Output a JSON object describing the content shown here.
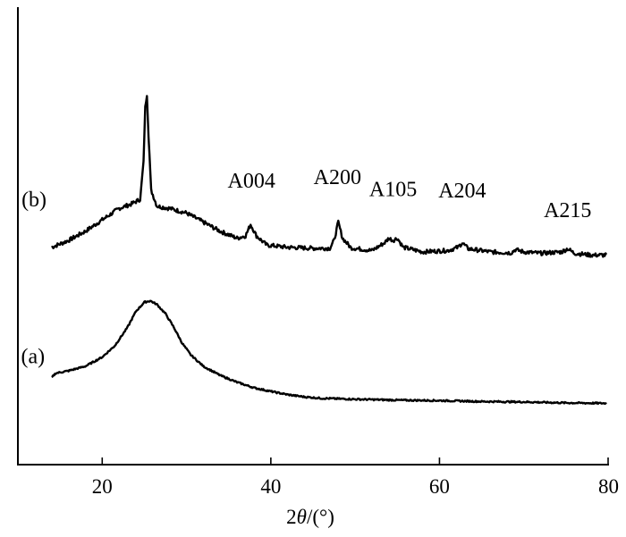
{
  "chart_data": {
    "type": "line",
    "title": "",
    "xlabel_prefix": "2",
    "xlabel_symbol": "θ",
    "xlabel_suffix": "/(°)",
    "ylabel": "",
    "xlim": [
      10,
      80
    ],
    "ylim": [
      0,
      100
    ],
    "xticks": [
      20,
      40,
      60,
      80
    ],
    "grid": false,
    "legend": "none",
    "series": [
      {
        "name": "(b)",
        "color": "#000000",
        "points": [
          [
            14,
            47.5
          ],
          [
            16,
            49
          ],
          [
            18,
            51
          ],
          [
            20,
            53.5
          ],
          [
            22,
            56
          ],
          [
            23.5,
            57
          ],
          [
            24.5,
            58
          ],
          [
            24.9,
            66
          ],
          [
            25.1,
            78
          ],
          [
            25.3,
            81
          ],
          [
            25.5,
            72
          ],
          [
            25.8,
            60
          ],
          [
            26.5,
            56.5
          ],
          [
            28,
            56
          ],
          [
            30,
            55
          ],
          [
            32,
            53
          ],
          [
            34,
            51
          ],
          [
            36,
            49.5
          ],
          [
            37,
            50
          ],
          [
            37.6,
            52.5
          ],
          [
            38.3,
            50
          ],
          [
            39.5,
            48
          ],
          [
            42,
            47.5
          ],
          [
            45,
            47.3
          ],
          [
            47,
            47.3
          ],
          [
            47.5,
            49
          ],
          [
            48,
            53
          ],
          [
            48.5,
            49.5
          ],
          [
            49.5,
            47.4
          ],
          [
            52,
            46.8
          ],
          [
            53.5,
            48.5
          ],
          [
            54,
            49.5
          ],
          [
            54.5,
            49
          ],
          [
            55,
            49.5
          ],
          [
            55.7,
            47.5
          ],
          [
            58,
            46.5
          ],
          [
            61,
            46.8
          ],
          [
            62.2,
            47.5
          ],
          [
            62.7,
            48.5
          ],
          [
            63.4,
            47.2
          ],
          [
            66,
            46.5
          ],
          [
            68.5,
            46.3
          ],
          [
            69,
            47
          ],
          [
            70,
            46.5
          ],
          [
            72,
            46.2
          ],
          [
            74.5,
            46.5
          ],
          [
            75.2,
            47.2
          ],
          [
            76,
            46.2
          ],
          [
            78,
            45.8
          ],
          [
            79.8,
            45.8
          ]
        ]
      },
      {
        "name": "(a)",
        "color": "#000000",
        "points": [
          [
            14,
            19
          ],
          [
            14.5,
            20
          ],
          [
            16,
            20.5
          ],
          [
            18,
            21.5
          ],
          [
            20,
            23.5
          ],
          [
            21.5,
            26
          ],
          [
            23,
            30
          ],
          [
            24,
            33.5
          ],
          [
            25,
            35.5
          ],
          [
            25.7,
            35.8
          ],
          [
            26.5,
            35
          ],
          [
            27.5,
            33
          ],
          [
            28.5,
            30
          ],
          [
            29.5,
            26.5
          ],
          [
            30.5,
            24
          ],
          [
            32,
            21.5
          ],
          [
            34,
            19.5
          ],
          [
            36,
            18
          ],
          [
            38,
            16.8
          ],
          [
            40,
            16
          ],
          [
            42,
            15.3
          ],
          [
            44,
            14.8
          ],
          [
            46,
            14.5
          ],
          [
            50,
            14.3
          ],
          [
            55,
            14.1
          ],
          [
            60,
            14
          ],
          [
            65,
            13.8
          ],
          [
            70,
            13.7
          ],
          [
            75,
            13.5
          ],
          [
            79.8,
            13.4
          ]
        ]
      }
    ],
    "annotations": [
      {
        "text": "A004",
        "x": 37.7,
        "y": 60.5
      },
      {
        "text": "A200",
        "x": 47.9,
        "y": 61.3
      },
      {
        "text": "A105",
        "x": 54.5,
        "y": 58.7
      },
      {
        "text": "A204",
        "x": 62.7,
        "y": 58.4
      },
      {
        "text": "A215",
        "x": 75.2,
        "y": 54.1
      }
    ],
    "series_labels": [
      {
        "text": "(b)",
        "x": 13.4,
        "y": 56.4
      },
      {
        "text": "(a)",
        "x": 13.2,
        "y": 22.2
      }
    ]
  }
}
